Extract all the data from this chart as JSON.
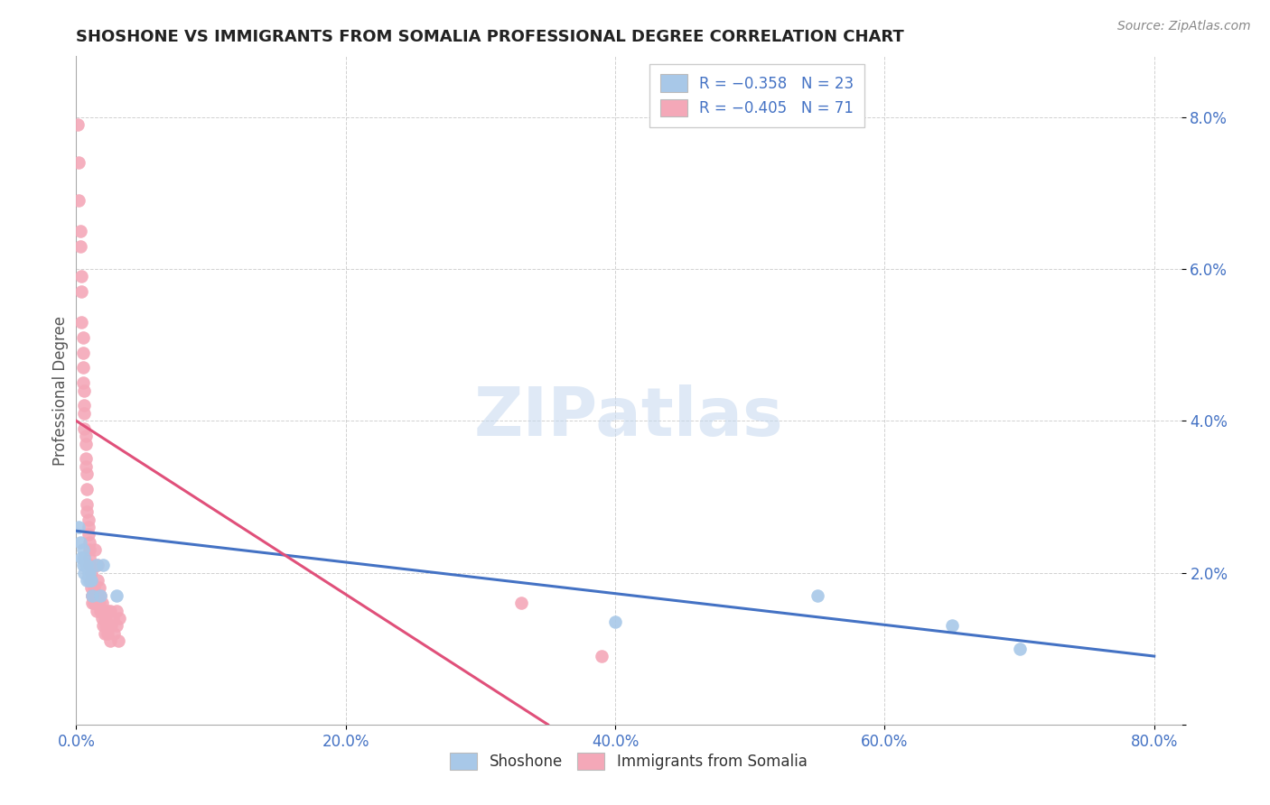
{
  "title": "SHOSHONE VS IMMIGRANTS FROM SOMALIA PROFESSIONAL DEGREE CORRELATION CHART",
  "source": "Source: ZipAtlas.com",
  "ylabel": "Professional Degree",
  "yticks": [
    0.0,
    0.02,
    0.04,
    0.06,
    0.08
  ],
  "ytick_labels": [
    "",
    "2.0%",
    "4.0%",
    "6.0%",
    "8.0%"
  ],
  "xticks": [
    0.0,
    0.2,
    0.4,
    0.6,
    0.8
  ],
  "xtick_labels": [
    "0.0%",
    "20.0%",
    "40.0%",
    "60.0%",
    "80.0%"
  ],
  "xlim": [
    0.0,
    0.82
  ],
  "ylim": [
    0.0,
    0.088
  ],
  "shoshone_color": "#a8c8e8",
  "somalia_color": "#f4a8b8",
  "shoshone_line_color": "#4472c4",
  "somalia_line_color": "#e0507a",
  "shoshone_points": [
    [
      0.002,
      0.026
    ],
    [
      0.003,
      0.024
    ],
    [
      0.004,
      0.022
    ],
    [
      0.005,
      0.021
    ],
    [
      0.005,
      0.023
    ],
    [
      0.006,
      0.022
    ],
    [
      0.006,
      0.02
    ],
    [
      0.007,
      0.021
    ],
    [
      0.008,
      0.021
    ],
    [
      0.008,
      0.019
    ],
    [
      0.009,
      0.02
    ],
    [
      0.01,
      0.019
    ],
    [
      0.01,
      0.02
    ],
    [
      0.011,
      0.019
    ],
    [
      0.012,
      0.017
    ],
    [
      0.015,
      0.021
    ],
    [
      0.018,
      0.017
    ],
    [
      0.02,
      0.021
    ],
    [
      0.03,
      0.017
    ],
    [
      0.4,
      0.0135
    ],
    [
      0.55,
      0.017
    ],
    [
      0.65,
      0.013
    ],
    [
      0.7,
      0.01
    ]
  ],
  "somalia_points": [
    [
      0.001,
      0.079
    ],
    [
      0.002,
      0.074
    ],
    [
      0.002,
      0.069
    ],
    [
      0.003,
      0.065
    ],
    [
      0.003,
      0.063
    ],
    [
      0.004,
      0.059
    ],
    [
      0.004,
      0.057
    ],
    [
      0.004,
      0.053
    ],
    [
      0.005,
      0.051
    ],
    [
      0.005,
      0.049
    ],
    [
      0.005,
      0.047
    ],
    [
      0.005,
      0.045
    ],
    [
      0.006,
      0.044
    ],
    [
      0.006,
      0.042
    ],
    [
      0.006,
      0.041
    ],
    [
      0.006,
      0.039
    ],
    [
      0.007,
      0.038
    ],
    [
      0.007,
      0.037
    ],
    [
      0.007,
      0.035
    ],
    [
      0.007,
      0.034
    ],
    [
      0.008,
      0.033
    ],
    [
      0.008,
      0.031
    ],
    [
      0.008,
      0.029
    ],
    [
      0.008,
      0.028
    ],
    [
      0.009,
      0.027
    ],
    [
      0.009,
      0.026
    ],
    [
      0.009,
      0.025
    ],
    [
      0.01,
      0.024
    ],
    [
      0.01,
      0.023
    ],
    [
      0.01,
      0.022
    ],
    [
      0.01,
      0.021
    ],
    [
      0.011,
      0.02
    ],
    [
      0.011,
      0.019
    ],
    [
      0.011,
      0.018
    ],
    [
      0.012,
      0.017
    ],
    [
      0.012,
      0.016
    ],
    [
      0.012,
      0.017
    ],
    [
      0.013,
      0.018
    ],
    [
      0.013,
      0.016
    ],
    [
      0.014,
      0.023
    ],
    [
      0.015,
      0.017
    ],
    [
      0.015,
      0.015
    ],
    [
      0.016,
      0.021
    ],
    [
      0.016,
      0.019
    ],
    [
      0.016,
      0.017
    ],
    [
      0.017,
      0.018
    ],
    [
      0.017,
      0.016
    ],
    [
      0.018,
      0.017
    ],
    [
      0.018,
      0.015
    ],
    [
      0.019,
      0.016
    ],
    [
      0.019,
      0.014
    ],
    [
      0.02,
      0.015
    ],
    [
      0.02,
      0.013
    ],
    [
      0.021,
      0.014
    ],
    [
      0.021,
      0.012
    ],
    [
      0.022,
      0.014
    ],
    [
      0.022,
      0.013
    ],
    [
      0.023,
      0.015
    ],
    [
      0.023,
      0.012
    ],
    [
      0.024,
      0.013
    ],
    [
      0.025,
      0.011
    ],
    [
      0.025,
      0.015
    ],
    [
      0.026,
      0.013
    ],
    [
      0.027,
      0.014
    ],
    [
      0.028,
      0.012
    ],
    [
      0.03,
      0.015
    ],
    [
      0.03,
      0.013
    ],
    [
      0.031,
      0.011
    ],
    [
      0.032,
      0.014
    ],
    [
      0.33,
      0.016
    ],
    [
      0.39,
      0.009
    ]
  ],
  "shoshone_trendline": [
    [
      0.0,
      0.0255
    ],
    [
      0.8,
      0.009
    ]
  ],
  "somalia_trendline": [
    [
      0.0,
      0.04
    ],
    [
      0.35,
      0.0
    ]
  ]
}
